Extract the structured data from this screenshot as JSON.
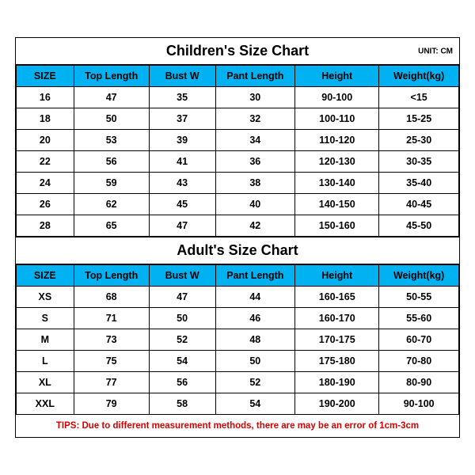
{
  "children": {
    "title": "Children's Size Chart",
    "unit": "UNIT: CM",
    "columns": [
      "SIZE",
      "Top Length",
      "Bust W",
      "Pant Length",
      "Height",
      "Weight(kg)"
    ],
    "rows": [
      [
        "16",
        "47",
        "35",
        "30",
        "90-100",
        "<15"
      ],
      [
        "18",
        "50",
        "37",
        "32",
        "100-110",
        "15-25"
      ],
      [
        "20",
        "53",
        "39",
        "34",
        "110-120",
        "25-30"
      ],
      [
        "22",
        "56",
        "41",
        "36",
        "120-130",
        "30-35"
      ],
      [
        "24",
        "59",
        "43",
        "38",
        "130-140",
        "35-40"
      ],
      [
        "26",
        "62",
        "45",
        "40",
        "140-150",
        "40-45"
      ],
      [
        "28",
        "65",
        "47",
        "42",
        "150-160",
        "45-50"
      ]
    ]
  },
  "adult": {
    "title": "Adult's Size Chart",
    "columns": [
      "SIZE",
      "Top Length",
      "Bust W",
      "Pant Length",
      "Height",
      "Weight(kg)"
    ],
    "rows": [
      [
        "XS",
        "68",
        "47",
        "44",
        "160-165",
        "50-55"
      ],
      [
        "S",
        "71",
        "50",
        "46",
        "160-170",
        "55-60"
      ],
      [
        "M",
        "73",
        "52",
        "48",
        "170-175",
        "60-70"
      ],
      [
        "L",
        "75",
        "54",
        "50",
        "175-180",
        "70-80"
      ],
      [
        "XL",
        "77",
        "56",
        "52",
        "180-190",
        "80-90"
      ],
      [
        "XXL",
        "79",
        "58",
        "54",
        "190-200",
        "90-100"
      ]
    ]
  },
  "tips": "TIPS: Due to different measurement methods, there are may be an error of 1cm-3cm",
  "style": {
    "header_bg": "#00b2f2",
    "border_color": "#000000",
    "tips_color": "#d80000",
    "title_fontsize": 18,
    "cell_fontsize": 12.5,
    "tips_fontsize": 11.5
  }
}
